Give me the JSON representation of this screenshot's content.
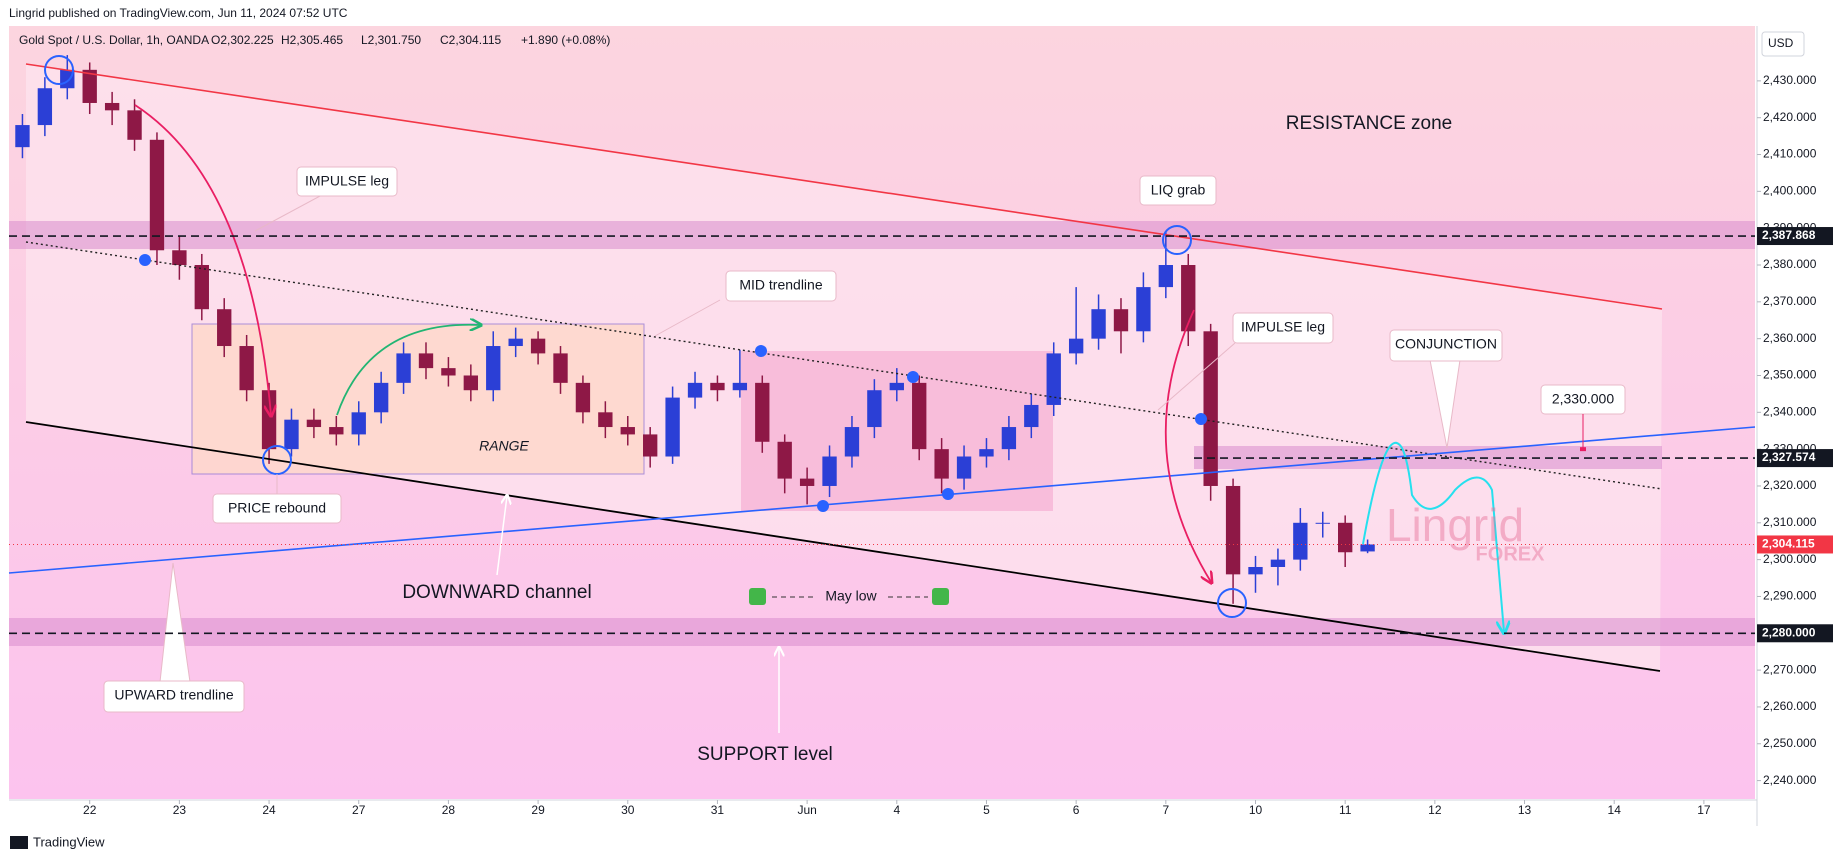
{
  "header": {
    "publisher": "Lingrid published on TradingView.com, Jun 11, 2024 07:52 UTC",
    "footer": "TradingView"
  },
  "chart_data": {
    "type": "candlestick",
    "title": "Gold Spot / U.S. Dollar, 1h, OANDA",
    "ohlc_header": [
      "O2,302.225",
      "H2,305.465",
      "L2,301.750",
      "C2,304.115",
      "+1.890 (+0.08%)"
    ],
    "currency": "USD",
    "x": [
      -0.75,
      -0.5,
      -0.25,
      0,
      0.25,
      0.5,
      0.75,
      1,
      1.25,
      1.5,
      1.75,
      2,
      2.25,
      2.5,
      2.75,
      3,
      3.25,
      3.5,
      3.75,
      4,
      4.25,
      4.5,
      4.75,
      5,
      5.25,
      5.5,
      5.75,
      6,
      6.25,
      6.5,
      6.75,
      7,
      7.25,
      7.5,
      7.75,
      8,
      8.25,
      8.5,
      8.75,
      9,
      9.25,
      9.5,
      9.75,
      10,
      10.25,
      10.5,
      10.75,
      11,
      11.25,
      11.5,
      11.75,
      12,
      12.25,
      12.5,
      12.75,
      13,
      13.25,
      13.5,
      13.75,
      14,
      14.25
    ],
    "open": [
      2412,
      2418,
      2428,
      2433,
      2424,
      2422,
      2414,
      2384,
      2380,
      2368,
      2358,
      2346,
      2330,
      2338,
      2336,
      2334,
      2340,
      2348,
      2356,
      2352,
      2350,
      2346,
      2358,
      2360,
      2356,
      2348,
      2340,
      2336,
      2334,
      2328,
      2344,
      2348,
      2346,
      2348,
      2332,
      2322,
      2320,
      2328,
      2336,
      2346,
      2348,
      2330,
      2322,
      2328,
      2330,
      2336,
      2342,
      2356,
      2360,
      2368,
      2362,
      2374,
      2380,
      2362,
      2320,
      2296,
      2298,
      2300,
      2310,
      2310,
      2302.225
    ],
    "high": [
      2421,
      2431,
      2437,
      2435,
      2427,
      2425,
      2416,
      2388,
      2383,
      2371,
      2361,
      2348,
      2341,
      2341,
      2339,
      2343,
      2351,
      2359,
      2359,
      2355,
      2353,
      2362,
      2363,
      2362,
      2358,
      2350,
      2343,
      2339,
      2336,
      2347,
      2351,
      2350,
      2357,
      2350,
      2334,
      2325,
      2331,
      2339,
      2349,
      2352,
      2350,
      2333,
      2331,
      2333,
      2339,
      2345,
      2359,
      2374,
      2372,
      2371,
      2378,
      2389,
      2383,
      2364,
      2322,
      2301,
      2303,
      2314,
      2313,
      2312,
      2305.465
    ],
    "low": [
      2409,
      2415,
      2425,
      2421,
      2418,
      2411,
      2380,
      2376,
      2365,
      2355,
      2343,
      2326,
      2328,
      2333,
      2331,
      2331,
      2337,
      2345,
      2349,
      2347,
      2343,
      2343,
      2355,
      2353,
      2345,
      2337,
      2333,
      2331,
      2325,
      2326,
      2341,
      2343,
      2344,
      2329,
      2318,
      2315,
      2317,
      2325,
      2333,
      2343,
      2327,
      2318,
      2319,
      2325,
      2327,
      2333,
      2339,
      2353,
      2357,
      2356,
      2359,
      2371,
      2358,
      2316,
      2288,
      2291,
      2293,
      2297,
      2306,
      2298,
      2301.75
    ],
    "close": [
      2418,
      2428,
      2433,
      2424,
      2422,
      2414,
      2384,
      2380,
      2368,
      2358,
      2346,
      2330,
      2338,
      2336,
      2334,
      2340,
      2348,
      2356,
      2352,
      2350,
      2346,
      2358,
      2360,
      2356,
      2348,
      2340,
      2336,
      2334,
      2328,
      2344,
      2348,
      2346,
      2348,
      2332,
      2322,
      2320,
      2328,
      2336,
      2346,
      2348,
      2330,
      2322,
      2328,
      2330,
      2336,
      2342,
      2356,
      2360,
      2368,
      2362,
      2374,
      2380,
      2362,
      2320,
      2296,
      2298,
      2300,
      2310,
      2310,
      2302,
      2304.115
    ],
    "up_color": "#2b3fd6",
    "down_color": "#8e1846",
    "xlim": [
      -0.9,
      18.57
    ],
    "xticks": [
      {
        "value": 0,
        "label": "22"
      },
      {
        "value": 1,
        "label": "23"
      },
      {
        "value": 2,
        "label": "24"
      },
      {
        "value": 3,
        "label": "27"
      },
      {
        "value": 4,
        "label": "28"
      },
      {
        "value": 5,
        "label": "29"
      },
      {
        "value": 6,
        "label": "30"
      },
      {
        "value": 7,
        "label": "31"
      },
      {
        "value": 8,
        "label": "Jun"
      },
      {
        "value": 9,
        "label": "4"
      },
      {
        "value": 10,
        "label": "5"
      },
      {
        "value": 11,
        "label": "6"
      },
      {
        "value": 12,
        "label": "7"
      },
      {
        "value": 13,
        "label": "10"
      },
      {
        "value": 14,
        "label": "11"
      },
      {
        "value": 15,
        "label": "12"
      },
      {
        "value": 16,
        "label": "13"
      },
      {
        "value": 17,
        "label": "14"
      },
      {
        "value": 18,
        "label": "17"
      }
    ],
    "ylim": [
      2235,
      2444.9
    ],
    "yticks": [
      {
        "value": 2240,
        "label": "2,240.000"
      },
      {
        "value": 2250,
        "label": "2,250.000"
      },
      {
        "value": 2260,
        "label": "2,260.000"
      },
      {
        "value": 2270,
        "label": "2,270.000"
      },
      {
        "value": 2280,
        "label": "2,280.000"
      },
      {
        "value": 2290,
        "label": "2,290.000"
      },
      {
        "value": 2300,
        "label": "2,300.000"
      },
      {
        "value": 2310,
        "label": "2,310.000"
      },
      {
        "value": 2320,
        "label": "2,320.000"
      },
      {
        "value": 2330,
        "label": "2,330.000"
      },
      {
        "value": 2340,
        "label": "2,340.000"
      },
      {
        "value": 2350,
        "label": "2,350.000"
      },
      {
        "value": 2360,
        "label": "2,360.000"
      },
      {
        "value": 2370,
        "label": "2,370.000"
      },
      {
        "value": 2380,
        "label": "2,380.000"
      },
      {
        "value": 2390,
        "label": "2,390.000"
      },
      {
        "value": 2400,
        "label": "2,400.000"
      },
      {
        "value": 2410,
        "label": "2,410.000"
      },
      {
        "value": 2420,
        "label": "2,420.000"
      },
      {
        "value": 2430,
        "label": "2,430.000"
      }
    ],
    "levels": [
      {
        "value": 2387.868,
        "label": "2,387.868"
      },
      {
        "value": 2327.574,
        "label": "2,327.574"
      },
      {
        "value": 2280,
        "label": "2,280.000"
      }
    ],
    "last_price": {
      "value": 2304.115,
      "label": "2,304.115"
    },
    "target": {
      "value": 2330,
      "label": "2,330.000"
    },
    "annotations": [
      "RESISTANCE zone",
      "IMPULSE leg",
      "LIQ grab",
      "MID trendline",
      "IMPULSE leg",
      "CONJUNCTION",
      "PRICE rebound",
      "RANGE",
      "DOWNWARD channel",
      "May low",
      "UPWARD trendline",
      "SUPPORT level",
      "Lingrid",
      "FOREX"
    ]
  }
}
